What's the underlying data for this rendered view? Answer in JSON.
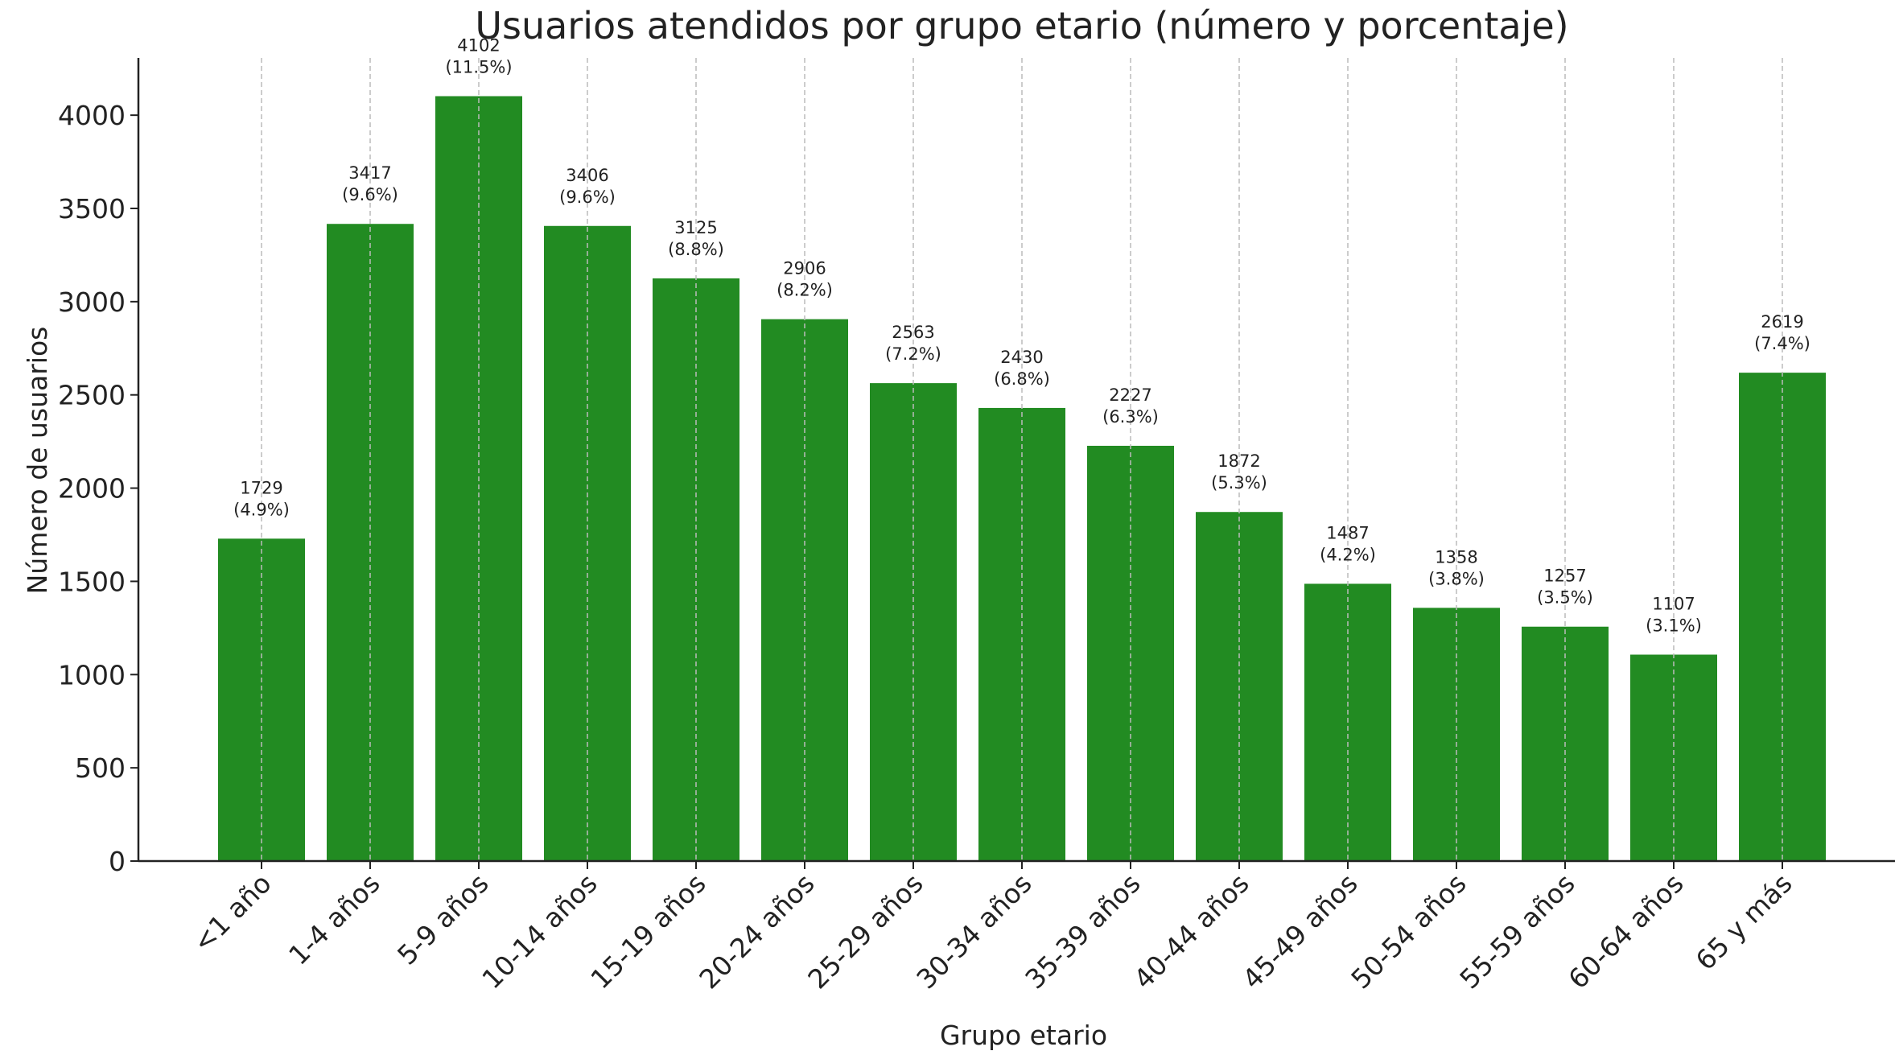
{
  "chart_data": {
    "type": "bar",
    "title": "Usuarios atendidos por grupo etario (número y porcentaje)",
    "x_label": "Grupo etario",
    "y_label": "Número de usuarios",
    "categories": [
      "<1 año",
      "1-4 años",
      "5-9 años",
      "10-14 años",
      "15-19 años",
      "20-24 años",
      "25-29 años",
      "30-34 años",
      "35-39 años",
      "40-44 años",
      "45-49 años",
      "50-54 años",
      "55-59 años",
      "60-64 años",
      "65 y más"
    ],
    "values": [
      1729,
      3417,
      4102,
      3406,
      3125,
      2906,
      2563,
      2430,
      2227,
      1872,
      1487,
      1358,
      1257,
      1107,
      2619
    ],
    "percent_labels": [
      "(4.9%)",
      "(9.6%)",
      "(11.5%)",
      "(9.6%)",
      "(8.8%)",
      "(8.2%)",
      "(7.2%)",
      "(6.8%)",
      "(6.3%)",
      "(5.3%)",
      "(4.2%)",
      "(3.8%)",
      "(3.5%)",
      "(3.1%)",
      "(7.4%)"
    ],
    "color": "#228b22",
    "ylim": [
      0,
      4307
    ],
    "yticks": [
      0,
      500,
      1000,
      1500,
      2000,
      2500,
      3000,
      3500,
      4000
    ],
    "grid": "x"
  }
}
